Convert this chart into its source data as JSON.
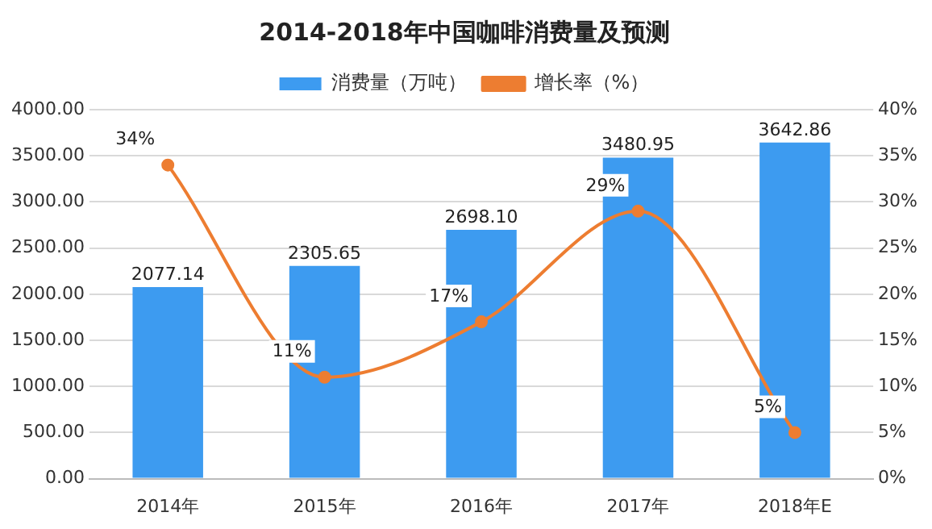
{
  "chart_data": {
    "type": "bar",
    "title": "2014-2018年中国咖啡消费量及预测",
    "categories": [
      "2014年",
      "2015年",
      "2016年",
      "2017年",
      "2018年E"
    ],
    "series": [
      {
        "name": "消费量（万吨）",
        "color": "#3d9bf0",
        "values": [
          2077.14,
          2305.65,
          2698.1,
          3480.95,
          3642.86
        ],
        "value_labels": [
          "2077.14",
          "2305.65",
          "2698.10",
          "3480.95",
          "3642.86"
        ]
      },
      {
        "name": "增长率（%）",
        "type": "line",
        "axis": "y2",
        "color": "#ed7d31",
        "values": [
          34,
          11,
          17,
          29,
          5
        ],
        "value_labels": [
          "34%",
          "11%",
          "17%",
          "29%",
          "5%"
        ]
      }
    ],
    "ylim": [
      0,
      4000
    ],
    "yticks": [
      {
        "value": 0,
        "label": "0.00"
      },
      {
        "value": 500,
        "label": "500.00"
      },
      {
        "value": 1000,
        "label": "1000.00"
      },
      {
        "value": 1500,
        "label": "1500.00"
      },
      {
        "value": 2000,
        "label": "2000.00"
      },
      {
        "value": 2500,
        "label": "2500.00"
      },
      {
        "value": 3000,
        "label": "3000.00"
      },
      {
        "value": 3500,
        "label": "3500.00"
      },
      {
        "value": 4000,
        "label": "4000.00"
      }
    ],
    "y2lim": [
      0,
      40
    ],
    "y2ticks": [
      {
        "value": 0,
        "label": "0%"
      },
      {
        "value": 5,
        "label": "5%"
      },
      {
        "value": 10,
        "label": "10%"
      },
      {
        "value": 15,
        "label": "15%"
      },
      {
        "value": 20,
        "label": "20%"
      },
      {
        "value": 25,
        "label": "25%"
      },
      {
        "value": 30,
        "label": "30%"
      },
      {
        "value": 35,
        "label": "35%"
      },
      {
        "value": 40,
        "label": "40%"
      }
    ],
    "grid": "y",
    "legend": "top",
    "marker": "circle",
    "line_style": "solid"
  }
}
